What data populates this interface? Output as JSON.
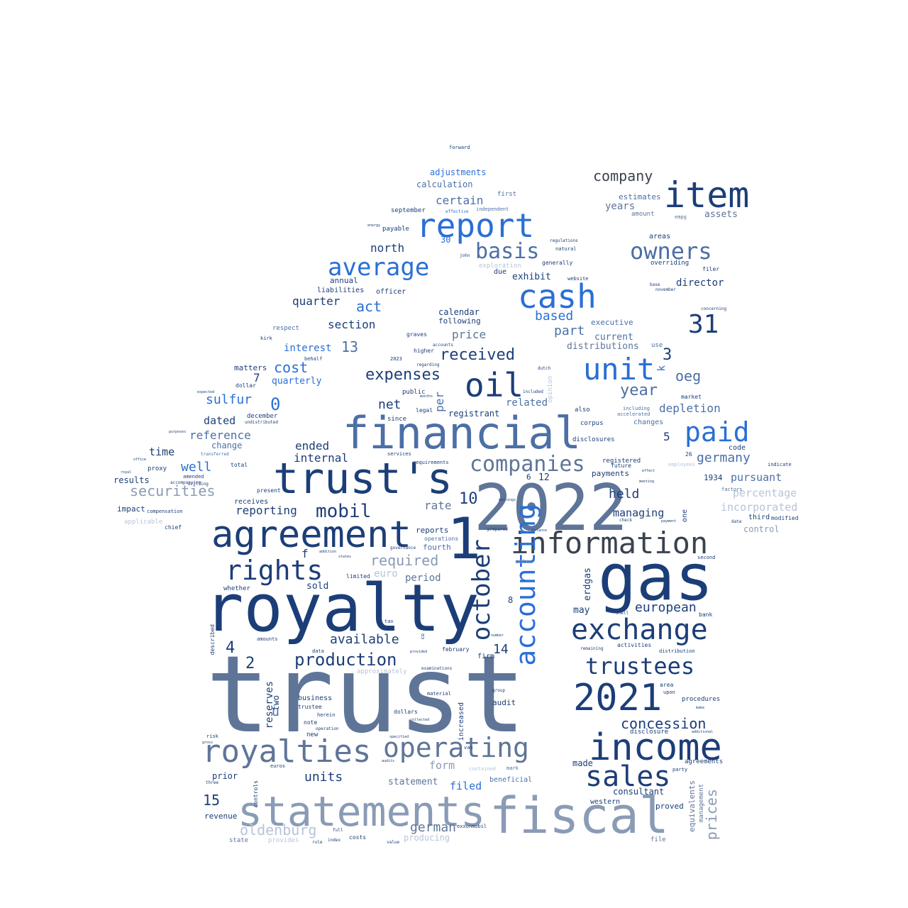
{
  "palette": {
    "navy": "#1c3e78",
    "blue": "#2f66b5",
    "mid": "#4c6fa6",
    "bright": "#2a6fd6",
    "slate": "#5f7598",
    "grey": "#8a9bb5",
    "light": "#b7c4d8",
    "dark": "#3b4250"
  },
  "words": [
    {
      "id": "trust",
      "text": "trust"
    },
    {
      "id": "2022",
      "text": "2022"
    },
    {
      "id": "royalty",
      "text": "royalty"
    },
    {
      "id": "gas",
      "text": "gas"
    },
    {
      "id": "financial",
      "text": "financial"
    },
    {
      "id": "trusts",
      "text": "trust's"
    },
    {
      "id": "agreement",
      "text": "agreement"
    },
    {
      "id": "fiscal",
      "text": "fiscal"
    },
    {
      "id": "statements",
      "text": "statements"
    },
    {
      "id": "income",
      "text": "income"
    },
    {
      "id": "1",
      "text": "1"
    },
    {
      "id": "information",
      "text": "information"
    },
    {
      "id": "2021",
      "text": "2021"
    },
    {
      "id": "royalties",
      "text": "royalties"
    },
    {
      "id": "exchange",
      "text": "exchange"
    },
    {
      "id": "item",
      "text": "item"
    },
    {
      "id": "report",
      "text": "report"
    },
    {
      "id": "cash",
      "text": "cash"
    },
    {
      "id": "oil",
      "text": "oil"
    },
    {
      "id": "operating",
      "text": "operating"
    },
    {
      "id": "rights",
      "text": "rights"
    },
    {
      "id": "unit",
      "text": "unit"
    },
    {
      "id": "sales",
      "text": "sales"
    },
    {
      "id": "paid",
      "text": "paid"
    },
    {
      "id": "accounting",
      "text": "accounting"
    },
    {
      "id": "trustees",
      "text": "trustees"
    },
    {
      "id": "average",
      "text": "average"
    },
    {
      "id": "october",
      "text": "october"
    },
    {
      "id": "owners",
      "text": "owners"
    },
    {
      "id": "companies",
      "text": "companies"
    },
    {
      "id": "basis",
      "text": "basis"
    },
    {
      "id": "31",
      "text": "31"
    },
    {
      "id": "production",
      "text": "production"
    },
    {
      "id": "mobil",
      "text": "mobil"
    },
    {
      "id": "expenses",
      "text": "expenses"
    },
    {
      "id": "received",
      "text": "received"
    },
    {
      "id": "concession",
      "text": "concession"
    },
    {
      "id": "company",
      "text": "company"
    },
    {
      "id": "year",
      "text": "year"
    },
    {
      "id": "securities",
      "text": "securities"
    },
    {
      "id": "oldenburg",
      "text": "oldenburg"
    },
    {
      "id": "european",
      "text": "european"
    },
    {
      "id": "germany",
      "text": "germany"
    },
    {
      "id": "available",
      "text": "available"
    },
    {
      "id": "required",
      "text": "required"
    },
    {
      "id": "german",
      "text": "german"
    },
    {
      "id": "prices",
      "text": "prices"
    },
    {
      "id": "10",
      "text": "10"
    },
    {
      "id": "0",
      "text": "0"
    },
    {
      "id": "3",
      "text": "3"
    },
    {
      "id": "4",
      "text": "4"
    },
    {
      "id": "2",
      "text": "2"
    },
    {
      "id": "15",
      "text": "15"
    },
    {
      "id": "14",
      "text": "14"
    },
    {
      "id": "13",
      "text": "13"
    },
    {
      "id": "cost",
      "text": "cost"
    },
    {
      "id": "sulfur",
      "text": "sulfur"
    },
    {
      "id": "act",
      "text": "act"
    },
    {
      "id": "oeg",
      "text": "oeg"
    },
    {
      "id": "depletion",
      "text": "depletion"
    },
    {
      "id": "pursuant",
      "text": "pursuant"
    },
    {
      "id": "percentage",
      "text": "percentage"
    },
    {
      "id": "incorporated",
      "text": "incorporated"
    },
    {
      "id": "held",
      "text": "held"
    },
    {
      "id": "managing",
      "text": "managing"
    },
    {
      "id": "well",
      "text": "well"
    },
    {
      "id": "reference",
      "text": "reference"
    },
    {
      "id": "reporting",
      "text": "reporting"
    },
    {
      "id": "internal",
      "text": "internal"
    },
    {
      "id": "ended",
      "text": "ended"
    },
    {
      "id": "net",
      "text": "net"
    },
    {
      "id": "rate",
      "text": "rate"
    },
    {
      "id": "units",
      "text": "units"
    },
    {
      "id": "form",
      "text": "form"
    },
    {
      "id": "statement",
      "text": "statement"
    },
    {
      "id": "filed",
      "text": "filed"
    },
    {
      "id": "consultant",
      "text": "consultant"
    },
    {
      "id": "quarter",
      "text": "quarter"
    },
    {
      "id": "section",
      "text": "section"
    },
    {
      "id": "north",
      "text": "north"
    },
    {
      "id": "interest",
      "text": "interest"
    },
    {
      "id": "quarterly",
      "text": "quarterly"
    },
    {
      "id": "time",
      "text": "time"
    },
    {
      "id": "dated",
      "text": "dated"
    },
    {
      "id": "change",
      "text": "change"
    },
    {
      "id": "price",
      "text": "price"
    },
    {
      "id": "based",
      "text": "based"
    },
    {
      "id": "part",
      "text": "part"
    },
    {
      "id": "exhibit",
      "text": "exhibit"
    },
    {
      "id": "director",
      "text": "director"
    },
    {
      "id": "current",
      "text": "current"
    },
    {
      "id": "distributions",
      "text": "distributions"
    },
    {
      "id": "years",
      "text": "years"
    },
    {
      "id": "certain",
      "text": "certain"
    },
    {
      "id": "calculation",
      "text": "calculation"
    },
    {
      "id": "adjustments",
      "text": "adjustments"
    },
    {
      "id": "assets",
      "text": "assets"
    },
    {
      "id": "estimates",
      "text": "estimates"
    },
    {
      "id": "control",
      "text": "control"
    },
    {
      "id": "results",
      "text": "results"
    },
    {
      "id": "impact",
      "text": "impact"
    },
    {
      "id": "reserves",
      "text": "reserves"
    },
    {
      "id": "business",
      "text": "business"
    },
    {
      "id": "period",
      "text": "period"
    },
    {
      "id": "sold",
      "text": "sold"
    },
    {
      "id": "euro",
      "text": "euro"
    },
    {
      "id": "fourth",
      "text": "fourth"
    },
    {
      "id": "reports",
      "text": "reports"
    },
    {
      "id": "may",
      "text": "may"
    },
    {
      "id": "erdgas",
      "text": "erdgas"
    },
    {
      "id": "payments",
      "text": "payments"
    },
    {
      "id": "related",
      "text": "related"
    },
    {
      "id": "registrant",
      "text": "registrant"
    },
    {
      "id": "calendar",
      "text": "calendar"
    },
    {
      "id": "following",
      "text": "following"
    },
    {
      "id": "made",
      "text": "made"
    },
    {
      "id": "proved",
      "text": "proved"
    },
    {
      "id": "equivalents",
      "text": "equivalents"
    },
    {
      "id": "management",
      "text": "management"
    },
    {
      "id": "audit",
      "text": "audit"
    },
    {
      "id": "producing",
      "text": "producing"
    },
    {
      "id": "matters",
      "text": "matters"
    },
    {
      "id": "revenue",
      "text": "revenue"
    },
    {
      "id": "prior",
      "text": "prior"
    },
    {
      "id": "beneficial",
      "text": "beneficial"
    },
    {
      "id": "western",
      "text": "western"
    },
    {
      "id": "procedures",
      "text": "procedures"
    },
    {
      "id": "agreements",
      "text": "agreements"
    },
    {
      "id": "executive",
      "text": "executive"
    },
    {
      "id": "increased",
      "text": "increased"
    },
    {
      "id": "annual",
      "text": "annual"
    },
    {
      "id": "liabilities",
      "text": "liabilities"
    },
    {
      "id": "officer",
      "text": "officer"
    },
    {
      "id": "september",
      "text": "september"
    },
    {
      "id": "payable",
      "text": "payable"
    },
    {
      "id": "respect",
      "text": "respect"
    },
    {
      "id": "december",
      "text": "december"
    },
    {
      "id": "dollar",
      "text": "dollar"
    },
    {
      "id": "total",
      "text": "total"
    },
    {
      "id": "proxy",
      "text": "proxy"
    },
    {
      "id": "receives",
      "text": "receives"
    },
    {
      "id": "present",
      "text": "present"
    },
    {
      "id": "whether",
      "text": "whether"
    },
    {
      "id": "limited",
      "text": "limited"
    },
    {
      "id": "described",
      "text": "described"
    },
    {
      "id": "amounts",
      "text": "amounts"
    },
    {
      "id": "trustee",
      "text": "trustee"
    },
    {
      "id": "herein",
      "text": "herein"
    },
    {
      "id": "note",
      "text": "note"
    },
    {
      "id": "new",
      "text": "new"
    },
    {
      "id": "dollars",
      "text": "dollars"
    },
    {
      "id": "material",
      "text": "material"
    },
    {
      "id": "van",
      "text": "van"
    },
    {
      "id": "costs",
      "text": "costs"
    },
    {
      "id": "mark",
      "text": "mark"
    },
    {
      "id": "notes",
      "text": "notes"
    },
    {
      "id": "firm",
      "text": "firm"
    },
    {
      "id": "february",
      "text": "february"
    },
    {
      "id": "bank",
      "text": "bank"
    },
    {
      "id": "area",
      "text": "area"
    },
    {
      "id": "upon",
      "text": "upon"
    },
    {
      "id": "disclosure",
      "text": "disclosure"
    },
    {
      "id": "third",
      "text": "third"
    },
    {
      "id": "modified",
      "text": "modified"
    },
    {
      "id": "code",
      "text": "code"
    },
    {
      "id": "factors",
      "text": "factors"
    },
    {
      "id": "1934",
      "text": "1934"
    },
    {
      "id": "also",
      "text": "also"
    },
    {
      "id": "corpus",
      "text": "corpus"
    },
    {
      "id": "disclosures",
      "text": "disclosures"
    },
    {
      "id": "registered",
      "text": "registered"
    },
    {
      "id": "future",
      "text": "future"
    },
    {
      "id": "accelerated",
      "text": "accelerated"
    },
    {
      "id": "changes",
      "text": "changes"
    },
    {
      "id": "including",
      "text": "including"
    },
    {
      "id": "use",
      "text": "use"
    },
    {
      "id": "market",
      "text": "market"
    },
    {
      "id": "overriding",
      "text": "overriding"
    },
    {
      "id": "areas",
      "text": "areas"
    },
    {
      "id": "filer",
      "text": "filer"
    },
    {
      "id": "amount",
      "text": "amount"
    },
    {
      "id": "first",
      "text": "first"
    },
    {
      "id": "independent",
      "text": "independent"
    },
    {
      "id": "exploration",
      "text": "exploration"
    },
    {
      "id": "due",
      "text": "due"
    },
    {
      "id": "generally",
      "text": "generally"
    },
    {
      "id": "natural",
      "text": "natural"
    },
    {
      "id": "regulations",
      "text": "regulations"
    },
    {
      "id": "website",
      "text": "website"
    },
    {
      "id": "dutch",
      "text": "dutch"
    },
    {
      "id": "public",
      "text": "public"
    },
    {
      "id": "legal",
      "text": "legal"
    },
    {
      "id": "since",
      "text": "since"
    },
    {
      "id": "higher",
      "text": "higher"
    },
    {
      "id": "graves",
      "text": "graves"
    },
    {
      "id": "accounts",
      "text": "accounts"
    },
    {
      "id": "services",
      "text": "services"
    },
    {
      "id": "requirements",
      "text": "requirements"
    },
    {
      "id": "operations",
      "text": "operations"
    },
    {
      "id": "applicable",
      "text": "applicable"
    },
    {
      "id": "compensation",
      "text": "compensation"
    },
    {
      "id": "chief",
      "text": "chief"
    },
    {
      "id": "well_amended",
      "text": "amended"
    },
    {
      "id": "drilling",
      "text": "drilling"
    },
    {
      "id": "two",
      "text": "two"
    },
    {
      "id": "u",
      "text": "u"
    },
    {
      "id": "f",
      "text": "f"
    },
    {
      "id": "per",
      "text": "per"
    },
    {
      "id": "k",
      "text": "k"
    },
    {
      "id": "5",
      "text": "5"
    },
    {
      "id": "6",
      "text": "6"
    },
    {
      "id": "7",
      "text": "7"
    },
    {
      "id": "8",
      "text": "8"
    },
    {
      "id": "12",
      "text": "12"
    },
    {
      "id": "30",
      "text": "30"
    },
    {
      "id": "26",
      "text": "26"
    },
    {
      "id": "one",
      "text": "one"
    },
    {
      "id": "opinion",
      "text": "opinion"
    },
    {
      "id": "state",
      "text": "state"
    },
    {
      "id": "provides",
      "text": "provides"
    },
    {
      "id": "forward",
      "text": "forward"
    },
    {
      "id": "controls",
      "text": "controls"
    },
    {
      "id": "date",
      "text": "date"
    },
    {
      "id": "second",
      "text": "second"
    },
    {
      "id": "file",
      "text": "file"
    },
    {
      "id": "shell",
      "text": "shell"
    },
    {
      "id": "examinations",
      "text": "examinations"
    },
    {
      "id": "approximately",
      "text": "approximately"
    },
    {
      "id": "exxonmobil",
      "text": "exxonmobil"
    },
    {
      "id": "full",
      "text": "full"
    },
    {
      "id": "index",
      "text": "index"
    },
    {
      "id": "value",
      "text": "value"
    },
    {
      "id": "rule",
      "text": "rule"
    },
    {
      "id": "contained",
      "text": "contained"
    },
    {
      "id": "employees",
      "text": "employees"
    },
    {
      "id": "indicate",
      "text": "indicate"
    },
    {
      "id": "activities",
      "text": "activities"
    },
    {
      "id": "remaining",
      "text": "remaining"
    },
    {
      "id": "distribution",
      "text": "distribution"
    },
    {
      "id": "concerning",
      "text": "concerning"
    },
    {
      "id": "base",
      "text": "base"
    },
    {
      "id": "november",
      "text": "november"
    },
    {
      "id": "empg",
      "text": "empg"
    },
    {
      "id": "effective",
      "text": "effective"
    },
    {
      "id": "energy",
      "text": "energy"
    },
    {
      "id": "john",
      "text": "john"
    },
    {
      "id": "kirk",
      "text": "kirk"
    },
    {
      "id": "2023",
      "text": "2023"
    },
    {
      "id": "regarding",
      "text": "regarding"
    },
    {
      "id": "months",
      "text": "months"
    },
    {
      "id": "included",
      "text": "included"
    },
    {
      "id": "accompanying",
      "text": "accompanying"
    },
    {
      "id": "purposes",
      "text": "purposes"
    },
    {
      "id": "expected",
      "text": "expected"
    },
    {
      "id": "undistributed",
      "text": "undistributed"
    },
    {
      "id": "behalf",
      "text": "behalf"
    },
    {
      "id": "royal",
      "text": "royal"
    },
    {
      "id": "office",
      "text": "office"
    },
    {
      "id": "transferred",
      "text": "transferred"
    },
    {
      "id": "group",
      "text": "group"
    },
    {
      "id": "audits",
      "text": "audits"
    },
    {
      "id": "collected",
      "text": "collected"
    },
    {
      "id": "specified",
      "text": "specified"
    },
    {
      "id": "prepared",
      "text": "prepared"
    },
    {
      "id": "balance",
      "text": "balance"
    },
    {
      "id": "earnings",
      "text": "earnings"
    },
    {
      "id": "meeting",
      "text": "meeting"
    },
    {
      "id": "effect",
      "text": "effect"
    },
    {
      "id": "euros",
      "text": "euros"
    },
    {
      "id": "gross",
      "text": "gross"
    },
    {
      "id": "three",
      "text": "three"
    },
    {
      "id": "risk",
      "text": "risk"
    },
    {
      "id": "operation",
      "text": "operation"
    },
    {
      "id": "governance",
      "text": "governance"
    },
    {
      "id": "addition",
      "text": "addition"
    },
    {
      "id": "states",
      "text": "states"
    },
    {
      "id": "tax",
      "text": "tax"
    },
    {
      "id": "co",
      "text": "co"
    },
    {
      "id": "provided",
      "text": "provided"
    },
    {
      "id": "data",
      "text": "data"
    },
    {
      "id": "number",
      "text": "number"
    },
    {
      "id": "check",
      "text": "check"
    },
    {
      "id": "payment",
      "text": "payment"
    },
    {
      "id": "party",
      "text": "party"
    },
    {
      "id": "make",
      "text": "make"
    },
    {
      "id": "additional",
      "text": "additional"
    }
  ]
}
